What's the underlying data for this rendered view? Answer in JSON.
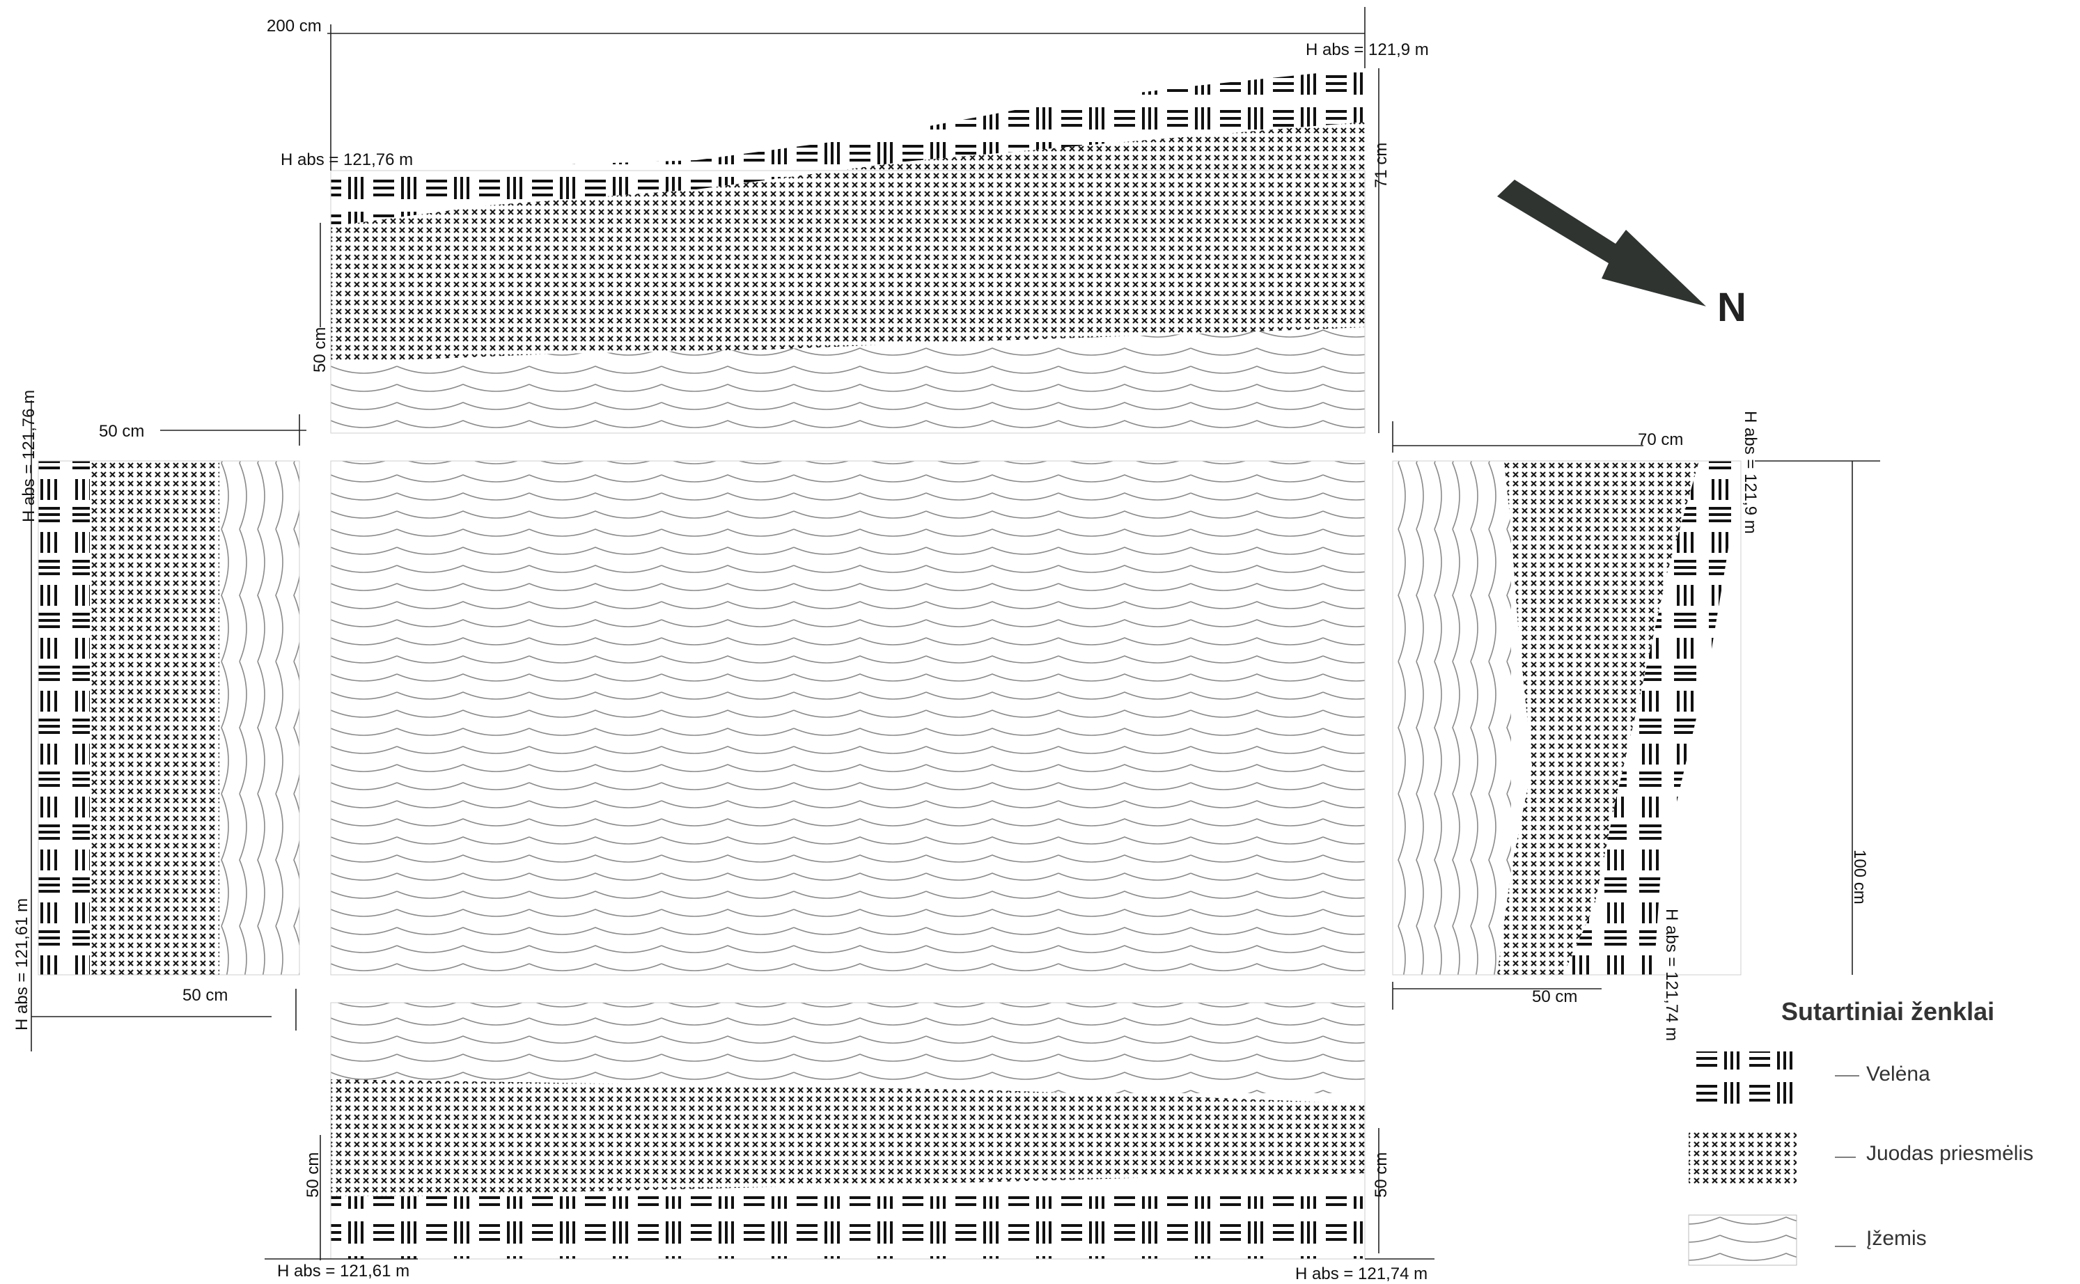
{
  "labels": {
    "top_width": "200 cm",
    "top_h_right": "H abs = 121,9 m",
    "top_h_left": "H abs = 121,76 m",
    "top_right_depth": "71 cm",
    "top_left_depth": "50 cm",
    "left_top_width": "50 cm",
    "left_h_top": "H abs = 121,76 m",
    "left_h_bottom": "H abs = 121,61 m",
    "left_bottom_width": "50 cm",
    "right_top_width": "70 cm",
    "right_h_top": "H abs = 121,9 m",
    "right_depth": "100 cm",
    "right_h_bottom": "H abs = 121,74 m",
    "right_bottom_width": "50 cm",
    "bottom_left_depth": "50 cm",
    "bottom_right_depth": "50 cm",
    "bottom_h_left": "H abs = 121,61 m",
    "bottom_h_right": "H abs = 121,74 m",
    "north": "N"
  },
  "legend": {
    "title": "Sutartiniai ženklai",
    "items": [
      {
        "key": "velena",
        "label": "Velėna",
        "pattern": "turf-hatch"
      },
      {
        "key": "juodas",
        "label": "Juodas priesmėlis",
        "pattern": "cross-hatch"
      },
      {
        "key": "izemis",
        "label": "Įžemis",
        "pattern": "wave-lines"
      }
    ]
  },
  "colors": {
    "ink": "#111111",
    "arrow": "#2f3431",
    "wave_line": "#8a8a8a",
    "cross_fill": "#1a1a1a"
  }
}
